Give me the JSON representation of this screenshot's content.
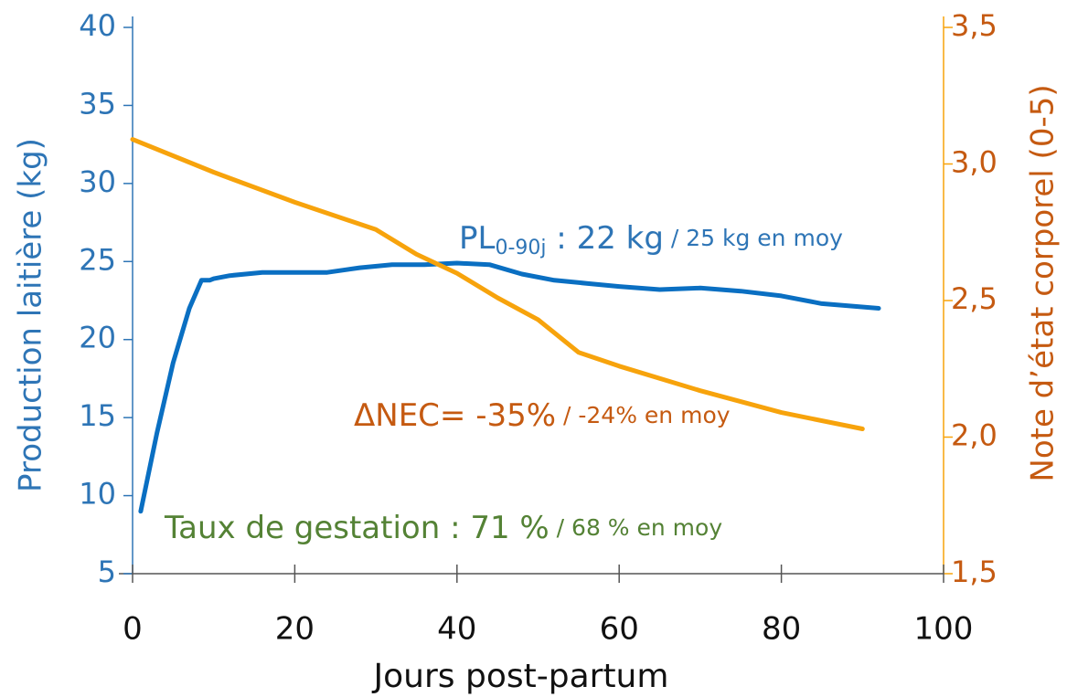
{
  "chart_data": {
    "type": "line",
    "xlabel": "Jours post-partum",
    "ylabel": "Production laitière (kg)",
    "y2label": "Note d’état corporel (0-5)",
    "xlim": [
      0,
      100
    ],
    "xticks": [
      0,
      20,
      40,
      60,
      80,
      100
    ],
    "ylim": [
      5,
      40
    ],
    "yticks": [
      5,
      10,
      15,
      20,
      25,
      30,
      35,
      40
    ],
    "y2lim": [
      1.5,
      3.5
    ],
    "y2ticks": [
      {
        "value": 1.5,
        "label": "1,5"
      },
      {
        "value": 2.0,
        "label": "2,0"
      },
      {
        "value": 2.5,
        "label": "2,5"
      },
      {
        "value": 3.0,
        "label": "3,0"
      },
      {
        "value": 3.5,
        "label": "3,5"
      }
    ],
    "series": [
      {
        "color": "#0a6fc2",
        "axis": "y",
        "x": [
          1,
          3,
          5,
          7,
          8.5,
          9.5,
          10,
          12,
          16,
          20,
          24,
          28,
          32,
          36,
          40,
          44,
          48,
          52,
          56,
          60,
          65,
          70,
          75,
          80,
          85,
          92
        ],
        "values": [
          9,
          14,
          18.5,
          22,
          23.8,
          23.8,
          23.9,
          24.1,
          24.3,
          24.3,
          24.3,
          24.6,
          24.8,
          24.8,
          24.9,
          24.8,
          24.2,
          23.8,
          23.6,
          23.4,
          23.2,
          23.3,
          23.1,
          22.8,
          22.3,
          22
        ]
      },
      {
        "color": "#f7a30c",
        "axis": "y2",
        "x": [
          0,
          10,
          20,
          30,
          35,
          40,
          45,
          50,
          55,
          60,
          70,
          80,
          90
        ],
        "values": [
          3.09,
          2.97,
          2.86,
          2.76,
          2.67,
          2.6,
          2.51,
          2.43,
          2.31,
          2.26,
          2.17,
          2.09,
          2.03
        ]
      }
    ],
    "annotations": [
      {
        "color": "#2e75b6",
        "parts": [
          "PL",
          "0-90j",
          " : 22 kg",
          " / 25 kg en moy"
        ]
      },
      {
        "color": "#c55a11",
        "parts": [
          "ΔNEC= -35%",
          " / -24% en moy"
        ]
      },
      {
        "color": "#548235",
        "parts": [
          "Taux de gestation : 71 %",
          " / 68 % en moy"
        ]
      }
    ]
  }
}
